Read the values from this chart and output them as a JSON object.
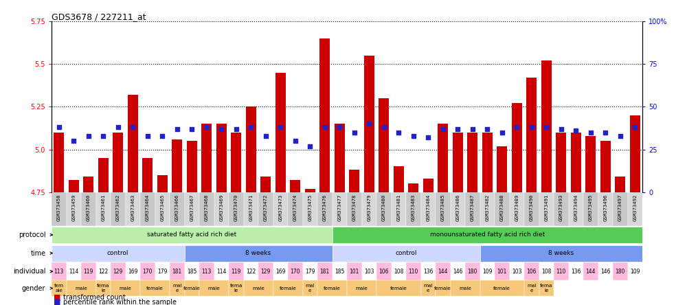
{
  "title": "GDS3678 / 227211_at",
  "samples": [
    "GSM373458",
    "GSM373459",
    "GSM373460",
    "GSM373461",
    "GSM373462",
    "GSM373463",
    "GSM373464",
    "GSM373465",
    "GSM373466",
    "GSM373467",
    "GSM373468",
    "GSM373469",
    "GSM373470",
    "GSM373471",
    "GSM373472",
    "GSM373473",
    "GSM373474",
    "GSM373475",
    "GSM373476",
    "GSM373477",
    "GSM373478",
    "GSM373479",
    "GSM373480",
    "GSM373481",
    "GSM373483",
    "GSM373484",
    "GSM373485",
    "GSM373486",
    "GSM373487",
    "GSM373482",
    "GSM373488",
    "GSM373489",
    "GSM373490",
    "GSM373491",
    "GSM373493",
    "GSM373494",
    "GSM373495",
    "GSM373496",
    "GSM373497",
    "GSM373492"
  ],
  "transformed_count": [
    5.1,
    4.82,
    4.84,
    4.95,
    5.1,
    5.32,
    4.95,
    4.85,
    5.06,
    5.05,
    5.15,
    5.15,
    5.1,
    5.25,
    4.84,
    5.45,
    4.82,
    4.77,
    5.65,
    5.15,
    4.88,
    5.55,
    5.3,
    4.9,
    4.8,
    4.83,
    5.15,
    5.1,
    5.1,
    5.1,
    5.02,
    5.27,
    5.42,
    5.52,
    5.1,
    5.1,
    5.08,
    5.05,
    4.84,
    5.2
  ],
  "percentile_rank": [
    38,
    30,
    33,
    33,
    38,
    38,
    33,
    33,
    37,
    37,
    38,
    37,
    37,
    38,
    33,
    38,
    30,
    27,
    38,
    38,
    35,
    40,
    38,
    35,
    33,
    32,
    37,
    37,
    37,
    37,
    35,
    38,
    38,
    38,
    37,
    36,
    35,
    35,
    33,
    38
  ],
  "ylim_left": [
    4.75,
    5.75
  ],
  "ylim_right": [
    0,
    100
  ],
  "yticks_left": [
    4.75,
    5.0,
    5.25,
    5.5,
    5.75
  ],
  "yticks_right": [
    0,
    25,
    50,
    75,
    100
  ],
  "ytick_labels_right": [
    "0",
    "25",
    "50",
    "75",
    "100%"
  ],
  "bar_color": "#cc0000",
  "dot_color": "#2222cc",
  "protocol_groups": [
    {
      "label": "saturated fatty acid rich diet",
      "start": 0,
      "end": 19,
      "color": "#bbeeaa"
    },
    {
      "label": "monounsaturated fatty acid rich diet",
      "start": 19,
      "end": 40,
      "color": "#55cc55"
    }
  ],
  "time_groups": [
    {
      "label": "control",
      "start": 0,
      "end": 9,
      "color": "#ccd8ff"
    },
    {
      "label": "8 weeks",
      "start": 9,
      "end": 19,
      "color": "#7799ee"
    },
    {
      "label": "control",
      "start": 19,
      "end": 29,
      "color": "#ccd8ff"
    },
    {
      "label": "8 weeks",
      "start": 29,
      "end": 40,
      "color": "#7799ee"
    }
  ],
  "individual_values": [
    "113",
    "114",
    "119",
    "122",
    "129",
    "169",
    "170",
    "179",
    "181",
    "185",
    "113",
    "114",
    "119",
    "122",
    "129",
    "169",
    "170",
    "179",
    "181",
    "185",
    "101",
    "103",
    "106",
    "108",
    "110",
    "136",
    "144",
    "146",
    "180",
    "109",
    "101",
    "103",
    "106",
    "108",
    "110",
    "136",
    "144",
    "146",
    "180",
    "109"
  ],
  "individual_colors_even": "#ffbbdd",
  "individual_colors_odd": "#ffffff",
  "gender_groups": [
    {
      "label": "fem\nale",
      "start": 0,
      "end": 1
    },
    {
      "label": "male",
      "start": 1,
      "end": 3
    },
    {
      "label": "fema\nle",
      "start": 3,
      "end": 4
    },
    {
      "label": "male",
      "start": 4,
      "end": 6
    },
    {
      "label": "female",
      "start": 6,
      "end": 8
    },
    {
      "label": "mal\ne",
      "start": 8,
      "end": 9
    },
    {
      "label": "female",
      "start": 9,
      "end": 10
    },
    {
      "label": "male",
      "start": 10,
      "end": 12
    },
    {
      "label": "fema\nle",
      "start": 12,
      "end": 13
    },
    {
      "label": "male",
      "start": 13,
      "end": 15
    },
    {
      "label": "female",
      "start": 15,
      "end": 17
    },
    {
      "label": "mal\ne",
      "start": 17,
      "end": 18
    },
    {
      "label": "female",
      "start": 18,
      "end": 20
    },
    {
      "label": "male",
      "start": 20,
      "end": 22
    },
    {
      "label": "female",
      "start": 22,
      "end": 25
    },
    {
      "label": "mal\ne",
      "start": 25,
      "end": 26
    },
    {
      "label": "female",
      "start": 26,
      "end": 27
    },
    {
      "label": "male",
      "start": 27,
      "end": 29
    },
    {
      "label": "female",
      "start": 29,
      "end": 32
    },
    {
      "label": "mal\ne",
      "start": 32,
      "end": 33
    },
    {
      "label": "fema\nle",
      "start": 33,
      "end": 34
    }
  ],
  "gender_color_male": "#f5c87a",
  "gender_color_female": "#f5c87a",
  "xticklabel_bg": "#cccccc",
  "row_label_fontsize": 7,
  "annotation_fontsize": 6.5
}
